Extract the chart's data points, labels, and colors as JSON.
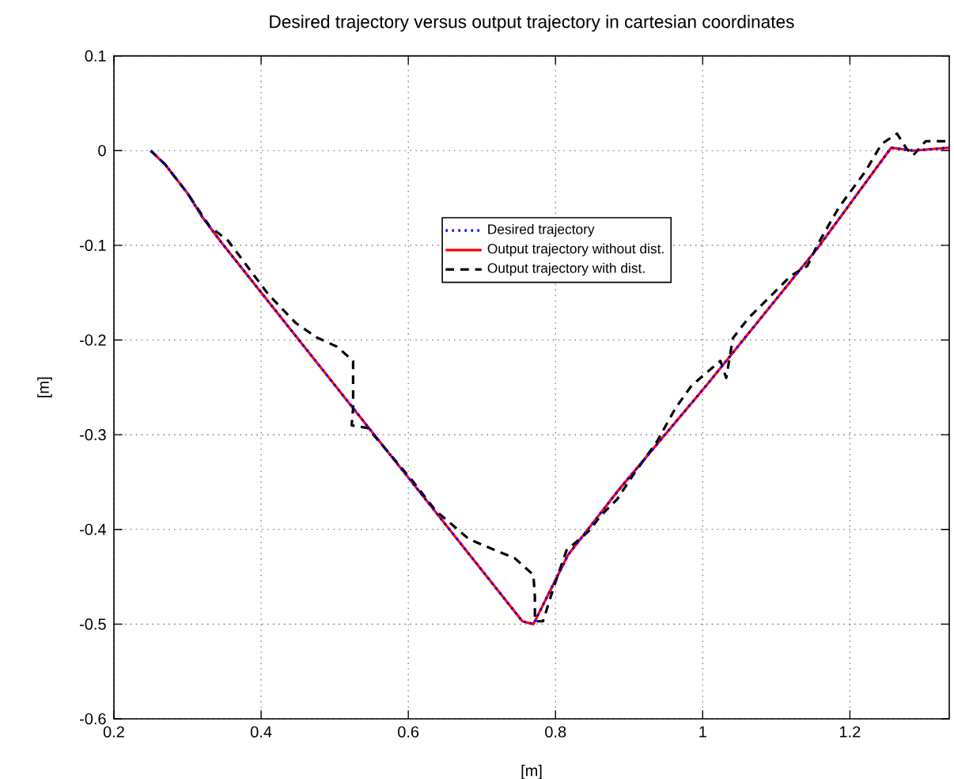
{
  "chart_data": {
    "type": "line",
    "title": "Desired trajectory versus output trajectory in cartesian coordinates",
    "xlabel": "[m]",
    "ylabel": "[m]",
    "xlim": [
      0.2,
      1.335
    ],
    "ylim": [
      -0.6,
      0.1
    ],
    "xticks": [
      0.2,
      0.4,
      0.6,
      0.8,
      1,
      1.2
    ],
    "yticks": [
      -0.6,
      -0.5,
      -0.4,
      -0.3,
      -0.2,
      -0.1,
      0,
      0.1
    ],
    "grid": true,
    "legend": "top",
    "series": [
      {
        "name": "Desired trajectory",
        "color": "#0000ff",
        "line_style": "dotted",
        "x": [
          0.25,
          0.27,
          0.3,
          0.32,
          0.346,
          0.52,
          0.755,
          0.77,
          0.817,
          0.884,
          1.006,
          1.157,
          1.256,
          1.286,
          1.335
        ],
        "values": [
          0,
          -0.015,
          -0.045,
          -0.07,
          -0.097,
          -0.267,
          -0.497,
          -0.5,
          -0.427,
          -0.36,
          -0.247,
          -0.102,
          0.003,
          0,
          0.003
        ]
      },
      {
        "name": "Output trajectory without dist.",
        "color": "#ff0000",
        "line_style": "solid",
        "x": [
          0.25,
          0.27,
          0.3,
          0.32,
          0.346,
          0.52,
          0.755,
          0.77,
          0.817,
          0.884,
          1.006,
          1.157,
          1.256,
          1.286,
          1.335
        ],
        "values": [
          0,
          -0.015,
          -0.045,
          -0.07,
          -0.097,
          -0.267,
          -0.497,
          -0.5,
          -0.427,
          -0.36,
          -0.247,
          -0.102,
          0.003,
          0,
          0.003
        ]
      },
      {
        "name": "Output trajectory with dist.",
        "color": "#000000",
        "line_style": "dashed",
        "x": [
          0.25,
          0.27,
          0.3,
          0.33,
          0.355,
          0.41,
          0.447,
          0.475,
          0.503,
          0.525,
          0.525,
          0.523,
          0.545,
          0.605,
          0.637,
          0.682,
          0.718,
          0.744,
          0.77,
          0.772,
          0.772,
          0.783,
          0.798,
          0.815,
          0.845,
          0.862,
          0.884,
          0.905,
          0.938,
          0.963,
          0.985,
          1.024,
          1.032,
          1.041,
          1.062,
          1.084,
          1.12,
          1.142,
          1.157,
          1.185,
          1.221,
          1.243,
          1.264,
          1.277,
          1.286,
          1.303,
          1.335
        ],
        "values": [
          0,
          -0.015,
          -0.045,
          -0.08,
          -0.095,
          -0.152,
          -0.182,
          -0.197,
          -0.207,
          -0.222,
          -0.272,
          -0.29,
          -0.293,
          -0.348,
          -0.38,
          -0.41,
          -0.422,
          -0.43,
          -0.448,
          -0.472,
          -0.497,
          -0.497,
          -0.46,
          -0.422,
          -0.402,
          -0.385,
          -0.368,
          -0.343,
          -0.307,
          -0.272,
          -0.248,
          -0.222,
          -0.24,
          -0.198,
          -0.177,
          -0.16,
          -0.132,
          -0.122,
          -0.098,
          -0.06,
          -0.022,
          0.007,
          0.018,
          0.002,
          -0.005,
          0.01,
          0.01
        ]
      }
    ]
  }
}
